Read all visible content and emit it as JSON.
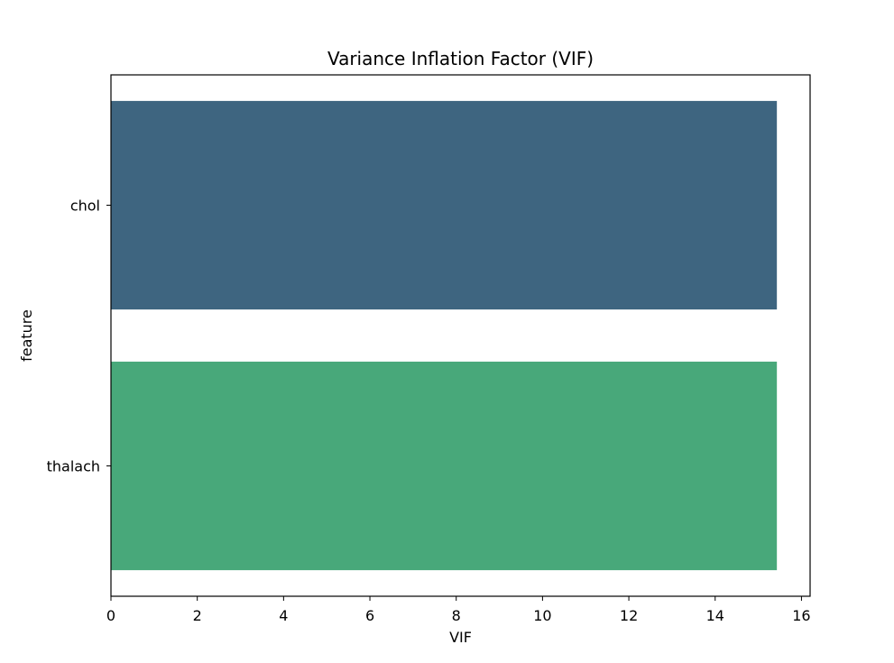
{
  "chart_data": {
    "type": "bar",
    "orientation": "horizontal",
    "title": "Variance Inflation Factor (VIF)",
    "xlabel": "VIF",
    "ylabel": "feature",
    "categories": [
      "chol",
      "thalach"
    ],
    "values": [
      15.43,
      15.43
    ],
    "colors": [
      "#3e6580",
      "#48a87a"
    ],
    "xlim": [
      0,
      16.2
    ],
    "xticks": [
      0,
      2,
      4,
      6,
      8,
      10,
      12,
      14,
      16
    ],
    "grid": false,
    "legend": "none"
  }
}
